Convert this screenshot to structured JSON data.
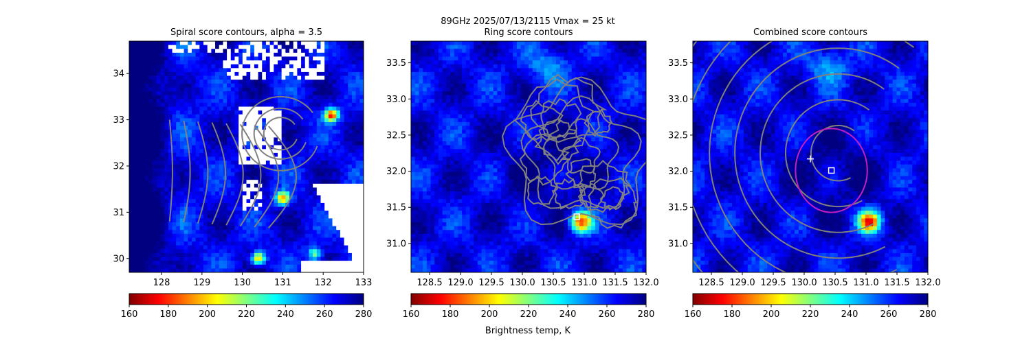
{
  "figure": {
    "suptitle_line1": "89GHz  2025/07/13/2115    Vmax = 25 kt",
    "colorbar_label": "Brightness temp, K"
  },
  "colors": {
    "contour": "#808080",
    "ring": "#c020c0",
    "marker": "#ffffff",
    "colormap": [
      "#800000",
      "#ff0000",
      "#ff8000",
      "#ffff00",
      "#80ff80",
      "#00ffff",
      "#0080ff",
      "#0000ff",
      "#000080"
    ]
  },
  "chart_data": [
    {
      "type": "heatmap",
      "title": "Spiral score contours, alpha =  3.5",
      "xlim": [
        127.2,
        133.0
      ],
      "ylim": [
        29.7,
        34.7
      ],
      "xticks": [
        128,
        129,
        130,
        131,
        132,
        133
      ],
      "xtick_labels": [
        "128",
        "129",
        "130",
        "131",
        "132",
        "133"
      ],
      "yticks": [
        30,
        31,
        32,
        33,
        34
      ],
      "ytick_labels": [
        "30",
        "31",
        "32",
        "33",
        "34"
      ],
      "colorbar": {
        "range": [
          160,
          280
        ],
        "ticks": [
          "160",
          "180",
          "200",
          "220",
          "240",
          "260",
          "280"
        ]
      },
      "has_missing_data": true,
      "contours": "spiral",
      "cold_spots": [
        {
          "x": 132.2,
          "y": 33.1,
          "value": 175
        },
        {
          "x": 131.0,
          "y": 31.3,
          "value": 185
        },
        {
          "x": 130.4,
          "y": 30.0,
          "value": 190
        },
        {
          "x": 131.8,
          "y": 30.1,
          "value": 215
        }
      ]
    },
    {
      "type": "heatmap",
      "title": "Ring score contours",
      "xlim": [
        128.2,
        132.0
      ],
      "ylim": [
        30.6,
        33.8
      ],
      "xticks": [
        128.5,
        129.0,
        129.5,
        130.0,
        130.5,
        131.0,
        131.5,
        132.0
      ],
      "xtick_labels": [
        "128.5",
        "129.0",
        "129.5",
        "130.0",
        "130.5",
        "131.0",
        "131.5",
        "132.0"
      ],
      "yticks": [
        31.0,
        31.5,
        32.0,
        32.5,
        33.0,
        33.5
      ],
      "ytick_labels": [
        "31.0",
        "31.5",
        "32.0",
        "32.5",
        "33.0",
        "33.5"
      ],
      "colorbar": {
        "range": [
          160,
          280
        ],
        "ticks": [
          "160",
          "180",
          "200",
          "220",
          "240",
          "260",
          "280"
        ]
      },
      "has_missing_data": false,
      "contours": "ring",
      "center_marker": {
        "x": 130.88,
        "y": 31.37
      },
      "cold_spots": [
        {
          "x": 130.95,
          "y": 31.3,
          "value": 175
        }
      ]
    },
    {
      "type": "heatmap",
      "title": "Combined score contours",
      "xlim": [
        128.2,
        132.0
      ],
      "ylim": [
        30.6,
        33.8
      ],
      "xticks": [
        128.5,
        129.0,
        129.5,
        130.0,
        130.5,
        131.0,
        131.5,
        132.0
      ],
      "xtick_labels": [
        "128.5",
        "129.0",
        "129.5",
        "130.0",
        "130.5",
        "131.0",
        "131.5",
        "132.0"
      ],
      "yticks": [
        31.0,
        31.5,
        32.0,
        32.5,
        33.0,
        33.5
      ],
      "ytick_labels": [
        "31.0",
        "31.5",
        "32.0",
        "32.5",
        "33.0",
        "33.5"
      ],
      "colorbar": {
        "range": [
          160,
          280
        ],
        "ticks": [
          "160",
          "180",
          "200",
          "220",
          "240",
          "260",
          "280"
        ]
      },
      "has_missing_data": false,
      "contours": "combined",
      "center_marker": {
        "x": 130.44,
        "y": 32.01
      },
      "plus_marker": {
        "x": 130.1,
        "y": 32.17
      },
      "ring": {
        "x": 130.44,
        "y": 32.01,
        "r": 0.58
      },
      "cold_spots": [
        {
          "x": 131.05,
          "y": 31.3,
          "value": 170
        }
      ]
    }
  ]
}
